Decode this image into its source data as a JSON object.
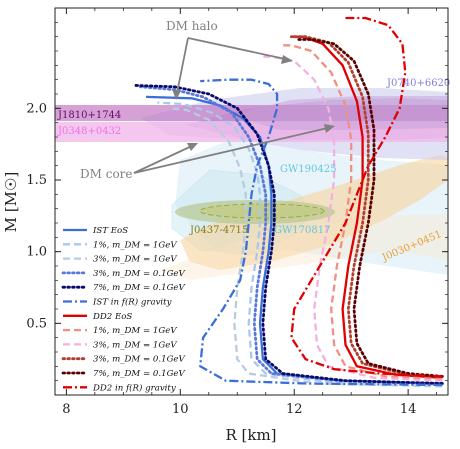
{
  "chart_data": {
    "type": "line",
    "xlabel": "R [km]",
    "ylabel": "M [M☉]",
    "xlim": [
      7.8,
      14.7
    ],
    "ylim": [
      0.0,
      2.7
    ],
    "x_ticks": [
      "8",
      "10",
      "12",
      "14"
    ],
    "y_ticks": [
      "0.5",
      "1.0",
      "1.5",
      "2.0"
    ],
    "grid": false,
    "legend_position": "lower-left",
    "observations": [
      {
        "name": "J1810+1744",
        "color": "#7a0f7a"
      },
      {
        "name": "J0348+0432",
        "color": "#e070d8"
      },
      {
        "name": "J0740+6620",
        "color": "#8080e0"
      },
      {
        "name": "GW190425",
        "color": "#60c8e0"
      },
      {
        "name": "J0437-4715",
        "color": "#8a7a10"
      },
      {
        "name": "GW170817",
        "color": "#60c8e0"
      },
      {
        "name": "J0030+0451",
        "color": "#e8a030"
      }
    ],
    "annotations": [
      {
        "text": "DM halo",
        "color": "#808080"
      },
      {
        "text": "DM core",
        "color": "#808080"
      }
    ],
    "series": [
      {
        "name": "IST EoS",
        "color": "#3b6fd8",
        "dash": "solid",
        "x": [
          14.6,
          12.8,
          11.7,
          11.45,
          11.4,
          11.45,
          11.55,
          11.6,
          11.6,
          11.55,
          11.4,
          11.1,
          10.7,
          10.2,
          9.4
        ],
        "y": [
          0.08,
          0.1,
          0.15,
          0.25,
          0.5,
          0.75,
          1.0,
          1.2,
          1.4,
          1.6,
          1.8,
          1.93,
          2.02,
          2.07,
          2.08
        ]
      },
      {
        "name": "1%, m_DM = 1GeV",
        "color": "#a8c8ec",
        "dash": "dashed",
        "x": [
          14.6,
          12.6,
          11.5,
          11.25,
          11.2,
          11.25,
          11.35,
          11.4,
          11.4,
          11.35,
          11.2,
          10.95,
          10.55,
          10.05,
          9.6
        ],
        "y": [
          0.07,
          0.09,
          0.15,
          0.25,
          0.5,
          0.75,
          1.0,
          1.2,
          1.4,
          1.55,
          1.72,
          1.87,
          1.97,
          2.03,
          2.04
        ]
      },
      {
        "name": "3%, m_DM = 1GeV",
        "color": "#b8cce0",
        "dash": "dashed",
        "x": [
          14.6,
          12.4,
          11.2,
          11.0,
          10.95,
          11.0,
          11.1,
          11.15,
          11.15,
          11.05,
          10.85,
          10.5,
          10.1,
          9.8
        ],
        "y": [
          0.06,
          0.08,
          0.15,
          0.25,
          0.5,
          0.75,
          1.0,
          1.2,
          1.4,
          1.58,
          1.77,
          1.92,
          1.99,
          2.0
        ]
      },
      {
        "name": "3%, m_DM = 0.1GeV",
        "color": "#5a78d8",
        "dash": "dotted",
        "x": [
          14.6,
          12.8,
          11.6,
          11.35,
          11.3,
          11.35,
          11.45,
          11.5,
          11.5,
          11.4,
          11.2,
          10.9,
          10.4,
          9.9,
          9.3
        ],
        "y": [
          0.08,
          0.1,
          0.15,
          0.25,
          0.5,
          0.75,
          1.0,
          1.2,
          1.4,
          1.6,
          1.8,
          1.97,
          2.08,
          2.13,
          2.15
        ]
      },
      {
        "name": "7%, m_DM = 0.1GeV",
        "color": "#0a0a6a",
        "dash": "dotted",
        "x": [
          14.6,
          12.9,
          11.8,
          11.5,
          11.45,
          11.5,
          11.6,
          11.65,
          11.65,
          11.55,
          11.35,
          11.0,
          10.5,
          9.9,
          9.2
        ],
        "y": [
          0.08,
          0.1,
          0.15,
          0.25,
          0.5,
          0.75,
          1.0,
          1.2,
          1.4,
          1.6,
          1.82,
          2.0,
          2.1,
          2.15,
          2.16
        ]
      },
      {
        "name": "IST in f(R) gravity",
        "color": "#3b6fd8",
        "dash": "dashdot",
        "x": [
          14.6,
          12.2,
          10.8,
          10.35,
          10.4,
          10.75,
          11.05,
          11.15,
          11.2,
          11.25,
          11.35,
          11.55,
          11.7,
          11.7,
          11.55,
          11.25,
          10.85,
          10.35
        ],
        "y": [
          0.07,
          0.08,
          0.1,
          0.2,
          0.4,
          0.6,
          0.8,
          1.0,
          1.2,
          1.4,
          1.6,
          1.8,
          2.0,
          2.1,
          2.17,
          2.2,
          2.2,
          2.19
        ]
      },
      {
        "name": "DD2 EoS",
        "color": "#e00000",
        "dash": "solid",
        "x": [
          14.6,
          13.8,
          13.1,
          12.9,
          12.85,
          12.95,
          13.1,
          13.2,
          13.2,
          13.1,
          12.85,
          12.5,
          12.15,
          11.95
        ],
        "y": [
          0.12,
          0.14,
          0.2,
          0.35,
          0.6,
          0.9,
          1.2,
          1.5,
          1.8,
          2.05,
          2.3,
          2.45,
          2.5,
          2.5
        ]
      },
      {
        "name": "1%, m_DM = 1GeV",
        "color": "#f09080",
        "dash": "dashed",
        "x": [
          14.6,
          13.6,
          12.9,
          12.7,
          12.65,
          12.75,
          12.9,
          13.0,
          13.0,
          12.9,
          12.65,
          12.3,
          11.95,
          11.75
        ],
        "y": [
          0.11,
          0.13,
          0.2,
          0.35,
          0.6,
          0.9,
          1.2,
          1.5,
          1.78,
          2.02,
          2.25,
          2.4,
          2.44,
          2.44
        ]
      },
      {
        "name": "3%, m_DM = 1GeV",
        "color": "#f4b0e0",
        "dash": "dashed",
        "x": [
          14.6,
          13.4,
          12.6,
          12.4,
          12.35,
          12.45,
          12.6,
          12.7,
          12.7,
          12.6,
          12.35,
          12.0,
          11.6,
          11.4
        ],
        "y": [
          0.1,
          0.12,
          0.2,
          0.35,
          0.6,
          0.9,
          1.2,
          1.5,
          1.77,
          2.0,
          2.2,
          2.33,
          2.36,
          2.36
        ]
      },
      {
        "name": "3%, m_DM = 0.1GeV",
        "color": "#b04030",
        "dash": "dotted",
        "x": [
          14.6,
          13.9,
          13.2,
          13.0,
          12.95,
          13.05,
          13.2,
          13.3,
          13.3,
          13.2,
          12.95,
          12.6,
          12.2,
          11.95
        ],
        "y": [
          0.13,
          0.15,
          0.22,
          0.36,
          0.6,
          0.9,
          1.2,
          1.5,
          1.82,
          2.08,
          2.32,
          2.46,
          2.5,
          2.5
        ]
      },
      {
        "name": "7%, m_DM = 0.1GeV",
        "color": "#5a0000",
        "dash": "dotted",
        "x": [
          14.6,
          14.0,
          13.3,
          13.1,
          13.05,
          13.15,
          13.3,
          13.4,
          13.4,
          13.3,
          13.05,
          12.7,
          12.3,
          12.05
        ],
        "y": [
          0.13,
          0.15,
          0.22,
          0.36,
          0.6,
          0.9,
          1.2,
          1.5,
          1.85,
          2.1,
          2.33,
          2.45,
          2.48,
          2.48
        ]
      },
      {
        "name": "DD2 in f(R) gravity",
        "color": "#e00000",
        "dash": "dashdot",
        "x": [
          14.6,
          13.5,
          12.7,
          12.2,
          11.95,
          12.0,
          12.3,
          12.6,
          12.9,
          13.1,
          13.3,
          13.6,
          13.85,
          13.95,
          13.9,
          13.65,
          13.25,
          12.9
        ],
        "y": [
          0.13,
          0.15,
          0.18,
          0.25,
          0.4,
          0.6,
          0.8,
          1.0,
          1.2,
          1.4,
          1.6,
          1.8,
          2.0,
          2.25,
          2.45,
          2.58,
          2.63,
          2.63
        ]
      }
    ]
  }
}
